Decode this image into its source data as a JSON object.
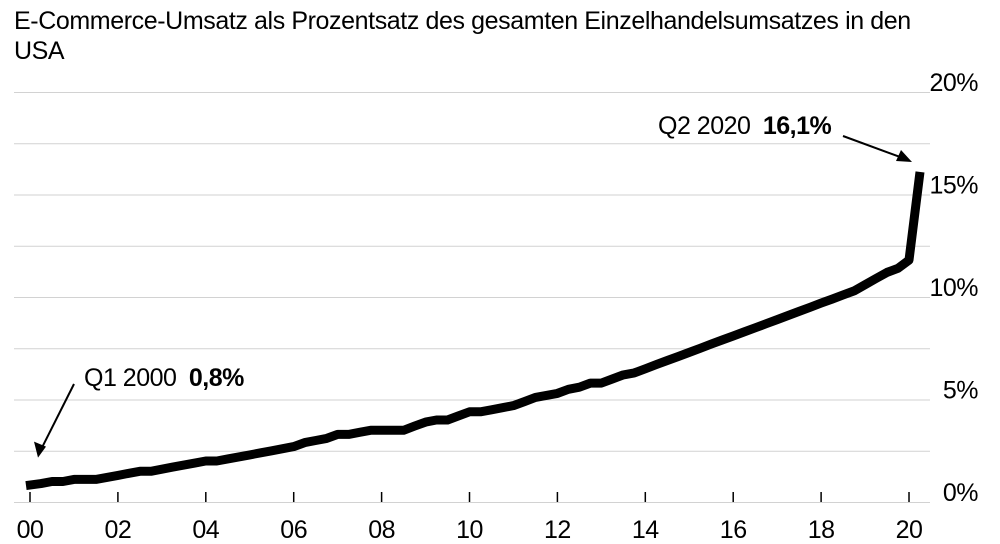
{
  "chart_data": {
    "type": "line",
    "title": "E-Commerce-Umsatz als Prozentsatz des gesamten Einzelhandelsumsatzes in den USA",
    "xlabel": "",
    "ylabel": "",
    "xlim": [
      2000.0,
      2020.25
    ],
    "ylim": [
      0,
      20
    ],
    "y_ticks": [
      {
        "value": 0,
        "label": "0%"
      },
      {
        "value": 5,
        "label": "5%"
      },
      {
        "value": 10,
        "label": "10%"
      },
      {
        "value": 15,
        "label": "15%"
      },
      {
        "value": 20,
        "label": "20%"
      }
    ],
    "x_ticks": [
      {
        "value": 2000,
        "label": "00"
      },
      {
        "value": 2002,
        "label": "02"
      },
      {
        "value": 2004,
        "label": "04"
      },
      {
        "value": 2006,
        "label": "06"
      },
      {
        "value": 2008,
        "label": "08"
      },
      {
        "value": 2010,
        "label": "10"
      },
      {
        "value": 2012,
        "label": "12"
      },
      {
        "value": 2014,
        "label": "14"
      },
      {
        "value": 2016,
        "label": "16"
      },
      {
        "value": 2018,
        "label": "18"
      },
      {
        "value": 2020,
        "label": "20"
      }
    ],
    "grid": true,
    "series": [
      {
        "name": "",
        "x": [
          2000.0,
          2000.25,
          2000.5,
          2000.75,
          2001.0,
          2001.25,
          2001.5,
          2001.75,
          2002.0,
          2002.25,
          2002.5,
          2002.75,
          2003.0,
          2003.25,
          2003.5,
          2003.75,
          2004.0,
          2004.25,
          2004.5,
          2004.75,
          2005.0,
          2005.25,
          2005.5,
          2005.75,
          2006.0,
          2006.25,
          2006.5,
          2006.75,
          2007.0,
          2007.25,
          2007.5,
          2007.75,
          2008.0,
          2008.25,
          2008.5,
          2008.75,
          2009.0,
          2009.25,
          2009.5,
          2009.75,
          2010.0,
          2010.25,
          2010.5,
          2010.75,
          2011.0,
          2011.25,
          2011.5,
          2011.75,
          2012.0,
          2012.25,
          2012.5,
          2012.75,
          2013.0,
          2013.25,
          2013.5,
          2013.75,
          2014.0,
          2014.25,
          2014.5,
          2014.75,
          2015.0,
          2015.25,
          2015.5,
          2015.75,
          2016.0,
          2016.25,
          2016.5,
          2016.75,
          2017.0,
          2017.25,
          2017.5,
          2017.75,
          2018.0,
          2018.25,
          2018.5,
          2018.75,
          2019.0,
          2019.25,
          2019.5,
          2019.75,
          2020.0,
          2020.25
        ],
        "values": [
          0.8,
          0.9,
          1.0,
          1.0,
          1.1,
          1.1,
          1.1,
          1.2,
          1.3,
          1.4,
          1.5,
          1.5,
          1.6,
          1.7,
          1.8,
          1.9,
          2.0,
          2.0,
          2.1,
          2.2,
          2.3,
          2.4,
          2.5,
          2.6,
          2.7,
          2.9,
          3.0,
          3.1,
          3.3,
          3.3,
          3.4,
          3.5,
          3.5,
          3.5,
          3.5,
          3.7,
          3.9,
          4.0,
          4.0,
          4.2,
          4.4,
          4.4,
          4.5,
          4.6,
          4.7,
          4.9,
          5.1,
          5.2,
          5.3,
          5.5,
          5.6,
          5.8,
          5.8,
          6.0,
          6.2,
          6.3,
          6.5,
          6.7,
          6.9,
          7.1,
          7.3,
          7.5,
          7.7,
          7.9,
          8.1,
          8.3,
          8.5,
          8.7,
          8.9,
          9.1,
          9.3,
          9.5,
          9.7,
          9.9,
          10.1,
          10.3,
          10.6,
          10.9,
          11.2,
          11.4,
          11.8,
          16.1
        ]
      }
    ],
    "annotations": [
      {
        "label": "Q1 2000",
        "value": "0,8%",
        "x": 2000.0,
        "y": 0.8
      },
      {
        "label": "Q2 2020",
        "value": "16,1%",
        "x": 2020.25,
        "y": 16.1
      }
    ]
  }
}
